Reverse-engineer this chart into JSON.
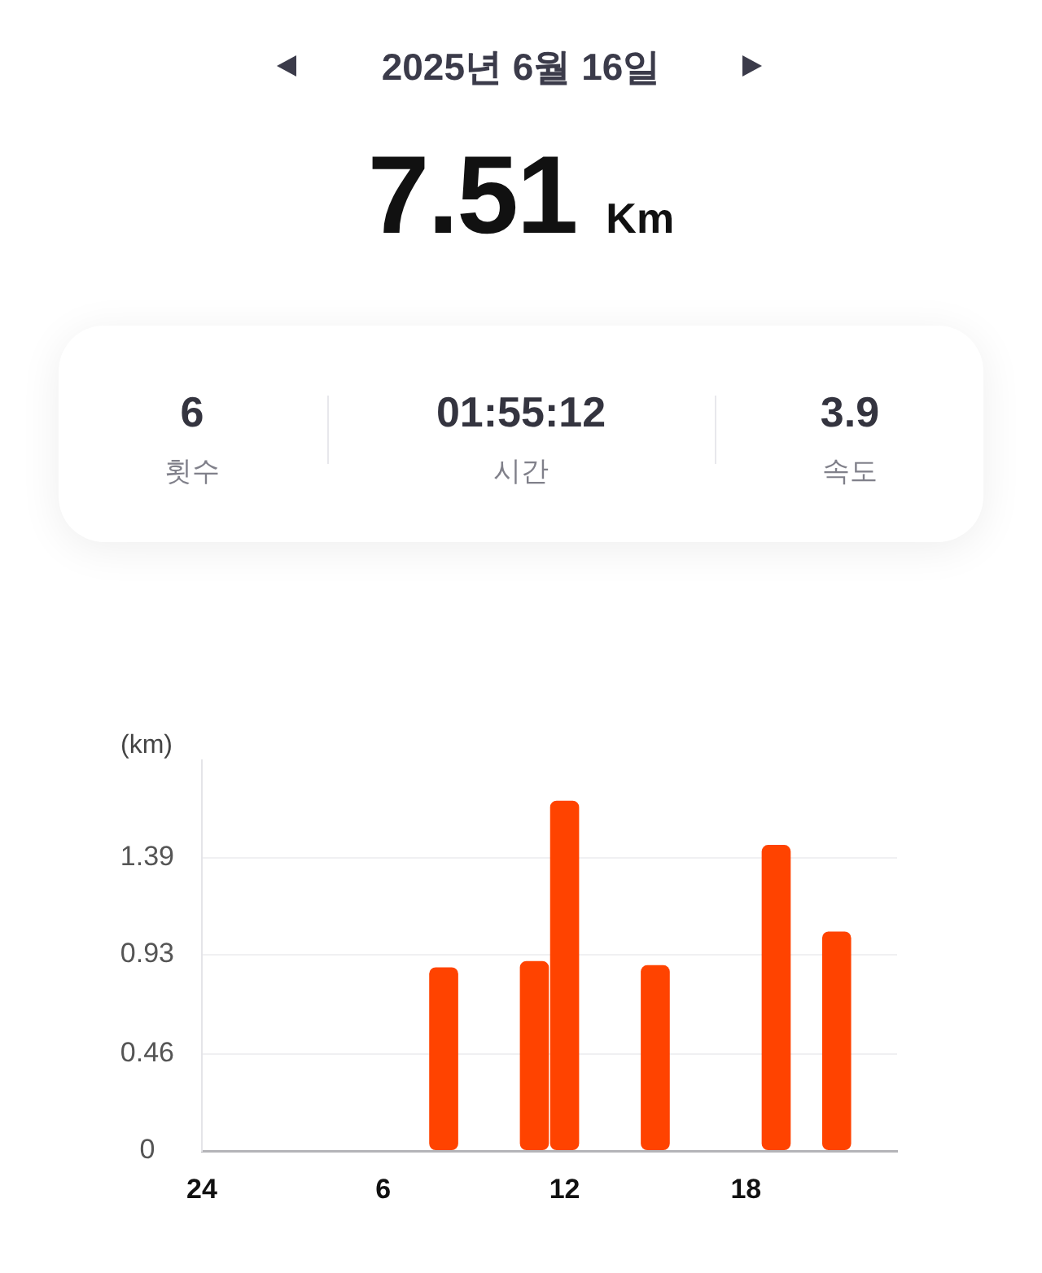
{
  "chart_data": {
    "type": "bar",
    "title": "2025년 6월 16일",
    "subtitle": "7.51 Km",
    "annotations": [
      "6",
      "횟수",
      "01:55:12",
      "시간",
      "3.9",
      "속도"
    ],
    "ylabel": "(km)",
    "categories": [
      "24",
      null,
      null,
      null,
      null,
      null,
      "6",
      null,
      null,
      null,
      null,
      null,
      "12",
      null,
      null,
      null,
      null,
      null,
      "18",
      null,
      null,
      null,
      null,
      null
    ],
    "values": [
      null,
      null,
      null,
      null,
      null,
      null,
      null,
      null,
      0.87,
      null,
      null,
      0.9,
      1.66,
      null,
      null,
      0.88,
      null,
      null,
      null,
      1.45,
      null,
      1.04,
      null,
      null
    ],
    "color": "#ff4300",
    "ylim": [
      0,
      1.85
    ],
    "yticks": [
      0,
      0.46,
      0.93,
      1.39
    ],
    "grid": "y"
  }
}
